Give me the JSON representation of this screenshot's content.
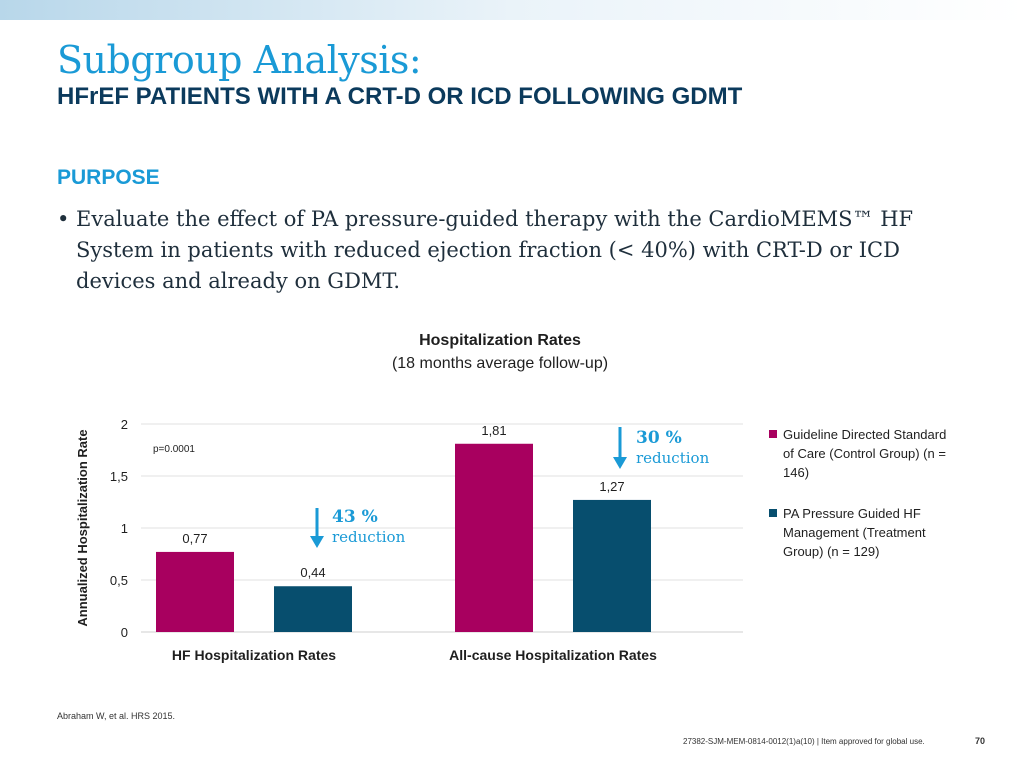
{
  "slide": {
    "title": "Subgroup Analysis:",
    "subtitle": "HFrEF PATIENTS WITH A CRT-D OR ICD FOLLOWING GDMT",
    "purpose_heading": "PURPOSE",
    "bullet_marker": "•",
    "bullet_text": "Evaluate the effect of PA pressure-guided therapy with the CardioMEMS™ HF System in patients with reduced ejection fraction (< 40%) with CRT-D or ICD devices and already on GDMT.",
    "footnote": "Abraham W, et al. HRS 2015.",
    "approval": "27382-SJM-MEM-0814-0012(1)a(10) | Item approved for global use.",
    "page_number": "70"
  },
  "colors": {
    "title": "#1a9ad6",
    "subtitle": "#0b3a5c",
    "control": "#a8005f",
    "treatment": "#074e6e",
    "arrow": "#1a9ad6"
  },
  "chart_data": {
    "type": "bar",
    "title": "Hospitalization Rates",
    "subtitle": "(18 months average follow-up)",
    "ylabel": "Annualized Hospitalization Rate",
    "xlabel": "",
    "ylim": [
      0,
      2
    ],
    "yticks": [
      0,
      0.5,
      1,
      1.5,
      2
    ],
    "ytick_labels": [
      "0",
      "0,5",
      "1",
      "1,5",
      "2"
    ],
    "grid": true,
    "categories": [
      "HF Hospitalization Rates",
      "All-cause Hospitalization Rates"
    ],
    "series": [
      {
        "name": "Guideline Directed Standard of Care (Control Group) (n = 146)",
        "values": [
          0.77,
          1.81
        ],
        "labels": [
          "0,77",
          "1,81"
        ],
        "color": "#a8005f"
      },
      {
        "name": "PA Pressure Guided HF Management (Treatment Group) (n = 129)",
        "values": [
          0.44,
          1.27
        ],
        "labels": [
          "0,44",
          "1,27"
        ],
        "color": "#074e6e"
      }
    ],
    "annotations": [
      {
        "text": "p=0.0001"
      },
      {
        "category": "HF Hospitalization Rates",
        "percent": "43 %",
        "text": "reduction"
      },
      {
        "category": "All-cause Hospitalization Rates",
        "percent": "30 %",
        "text": "reduction"
      }
    ],
    "legend_position": "right"
  }
}
